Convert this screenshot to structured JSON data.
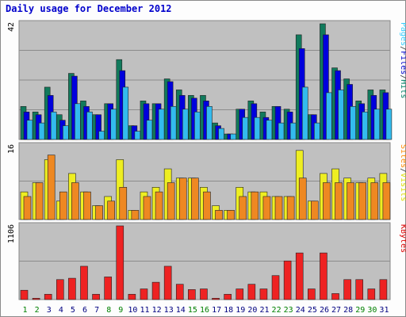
{
  "chart_data": {
    "type": "bar",
    "title": "Daily usage for December 2012",
    "days": [
      "1",
      "2",
      "3",
      "4",
      "5",
      "6",
      "7",
      "8",
      "9",
      "10",
      "11",
      "12",
      "13",
      "14",
      "15",
      "16",
      "17",
      "18",
      "19",
      "20",
      "21",
      "22",
      "23",
      "24",
      "25",
      "26",
      "27",
      "28",
      "29",
      "30",
      "31"
    ],
    "weekend_days": [
      "1",
      "2",
      "8",
      "9",
      "15",
      "16",
      "22",
      "23",
      "29",
      "30"
    ],
    "panels": [
      {
        "id": "requests",
        "scale_label": "42",
        "ymax": 42,
        "axis_labels": [
          {
            "text": "Pages",
            "color": "#33ccff"
          },
          {
            "text": "/",
            "color": "#333333"
          },
          {
            "text": "Files",
            "color": "#0000cc"
          },
          {
            "text": "/",
            "color": "#333333"
          },
          {
            "text": "Hits",
            "color": "#008066"
          }
        ],
        "series": [
          {
            "name": "Hits",
            "color": "#117a5c",
            "values": [
              12,
              10,
              19,
              9,
              24,
              14,
              9,
              13,
              29,
              5,
              14,
              13,
              22,
              18,
              16,
              16,
              6,
              2,
              11,
              14,
              10,
              12,
              11,
              38,
              9,
              42,
              26,
              22,
              14,
              18,
              18
            ]
          },
          {
            "name": "Files",
            "color": "#0000dd",
            "values": [
              10,
              9,
              16,
              7,
              23,
              12,
              9,
              13,
              25,
              5,
              13,
              13,
              21,
              16,
              15,
              14,
              5,
              2,
              11,
              13,
              8,
              12,
              10,
              33,
              9,
              38,
              25,
              20,
              13,
              16,
              17
            ]
          },
          {
            "name": "Pages",
            "color": "#33bbee",
            "values": [
              7,
              6,
              10,
              5,
              13,
              10,
              3,
              11,
              19,
              3,
              7,
              11,
              12,
              11,
              10,
              12,
              4,
              2,
              8,
              8,
              7,
              6,
              6,
              19,
              6,
              17,
              18,
              12,
              10,
              11,
              11
            ]
          }
        ]
      },
      {
        "id": "sites-visits",
        "scale_label": "16",
        "ymax": 16,
        "axis_labels": [
          {
            "text": "Sites",
            "color": "#ff8800"
          },
          {
            "text": "/",
            "color": "#333333"
          },
          {
            "text": "Visits",
            "color": "#dddd00"
          }
        ],
        "series": [
          {
            "name": "Visits",
            "color": "#eeee22",
            "values": [
              6,
              8,
              13,
              4,
              10,
              6,
              3,
              5,
              13,
              2,
              6,
              7,
              11,
              9,
              9,
              7,
              3,
              2,
              7,
              6,
              6,
              5,
              5,
              15,
              4,
              10,
              11,
              9,
              8,
              9,
              10
            ]
          },
          {
            "name": "Sites",
            "color": "#ee8822",
            "values": [
              5,
              8,
              14,
              6,
              8,
              6,
              3,
              4,
              7,
              2,
              5,
              6,
              8,
              9,
              9,
              6,
              2,
              2,
              5,
              6,
              5,
              5,
              5,
              9,
              4,
              8,
              8,
              8,
              8,
              8,
              8
            ]
          }
        ]
      },
      {
        "id": "kbytes",
        "scale_label": "1106",
        "ymax": 1106,
        "axis_labels": [
          {
            "text": "KBytes",
            "color": "#dd0000"
          }
        ],
        "series": [
          {
            "name": "KBytes",
            "color": "#ee2222",
            "values": [
              140,
              20,
              80,
              300,
              320,
              500,
              80,
              340,
              1106,
              80,
              160,
              260,
              500,
              230,
              150,
              160,
              20,
              80,
              160,
              230,
              160,
              360,
              580,
              700,
              160,
              700,
              90,
              300,
              300,
              160,
              300
            ]
          }
        ]
      }
    ],
    "day_label_colors": {
      "weekday": "#000080",
      "weekend": "#008000"
    }
  }
}
